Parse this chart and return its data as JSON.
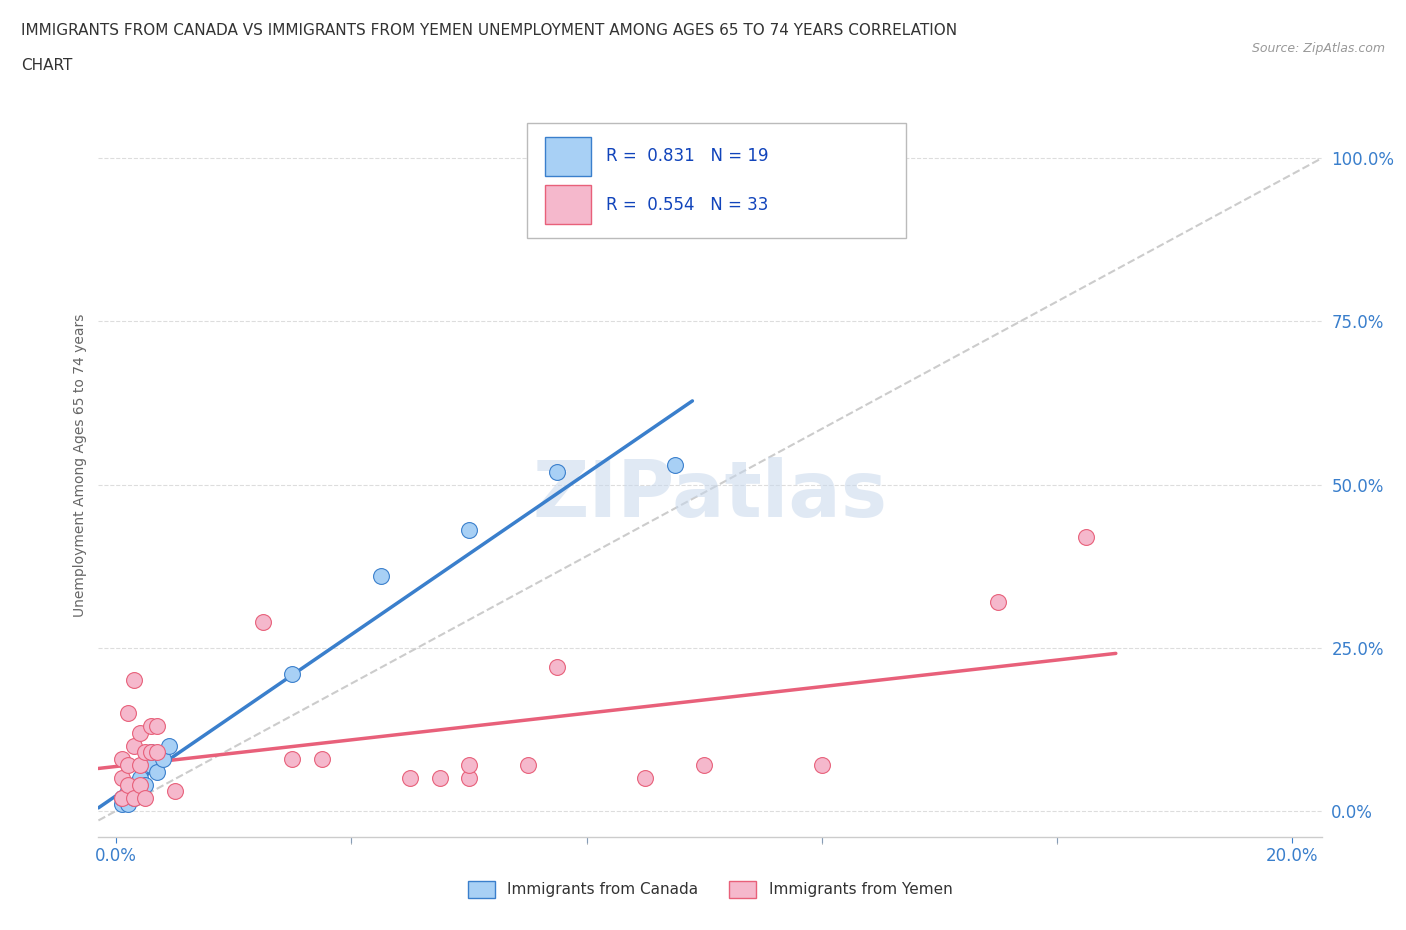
{
  "title_line1": "IMMIGRANTS FROM CANADA VS IMMIGRANTS FROM YEMEN UNEMPLOYMENT AMONG AGES 65 TO 74 YEARS CORRELATION",
  "title_line2": "CHART",
  "source": "Source: ZipAtlas.com",
  "ylabel": "Unemployment Among Ages 65 to 74 years",
  "yticks": [
    "0.0%",
    "25.0%",
    "50.0%",
    "75.0%",
    "100.0%"
  ],
  "ytick_vals": [
    0.0,
    0.25,
    0.5,
    0.75,
    1.0
  ],
  "canada_R": 0.831,
  "canada_N": 19,
  "yemen_R": 0.554,
  "yemen_N": 33,
  "canada_color": "#A8D0F5",
  "yemen_color": "#F5B8CC",
  "canada_line_color": "#3A7FCC",
  "yemen_line_color": "#E8607A",
  "trendline_color": "#BBBBBB",
  "background_color": "#FFFFFF",
  "watermark": "ZIPatlas",
  "canada_x": [
    0.001,
    0.001,
    0.002,
    0.002,
    0.003,
    0.003,
    0.004,
    0.004,
    0.005,
    0.006,
    0.006,
    0.007,
    0.008,
    0.009,
    0.03,
    0.045,
    0.06,
    0.075,
    0.095
  ],
  "canada_y": [
    0.01,
    0.02,
    0.01,
    0.03,
    0.02,
    0.04,
    0.03,
    0.05,
    0.04,
    0.07,
    0.09,
    0.06,
    0.08,
    0.1,
    0.21,
    0.36,
    0.43,
    0.52,
    0.53
  ],
  "yemen_x": [
    0.001,
    0.001,
    0.001,
    0.002,
    0.002,
    0.002,
    0.003,
    0.003,
    0.003,
    0.004,
    0.004,
    0.004,
    0.005,
    0.005,
    0.006,
    0.006,
    0.007,
    0.007,
    0.01,
    0.025,
    0.03,
    0.035,
    0.05,
    0.055,
    0.06,
    0.06,
    0.07,
    0.075,
    0.09,
    0.1,
    0.12,
    0.15,
    0.165
  ],
  "yemen_y": [
    0.02,
    0.05,
    0.08,
    0.04,
    0.07,
    0.15,
    0.02,
    0.1,
    0.2,
    0.04,
    0.07,
    0.12,
    0.02,
    0.09,
    0.09,
    0.13,
    0.09,
    0.13,
    0.03,
    0.29,
    0.08,
    0.08,
    0.05,
    0.05,
    0.05,
    0.07,
    0.07,
    0.22,
    0.05,
    0.07,
    0.07,
    0.32,
    0.42
  ]
}
